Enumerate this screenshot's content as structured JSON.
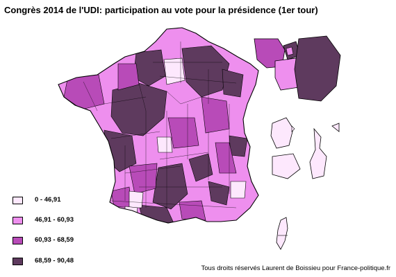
{
  "title": "Congrès 2014 de l'UDI: participation au vote pour la présidence (1er tour)",
  "legend": [
    {
      "label": "0 - 46,91",
      "color": "#fde8fd"
    },
    {
      "label": "46,91 - 60,93",
      "color": "#ee8fee"
    },
    {
      "label": "60,93 - 68,59",
      "color": "#b84bb8"
    },
    {
      "label": "68,59 - 90,48",
      "color": "#5e3a5e"
    }
  ],
  "credit": "Tous droits réservés Laurent de Boissieu pour France-politique.fr"
}
